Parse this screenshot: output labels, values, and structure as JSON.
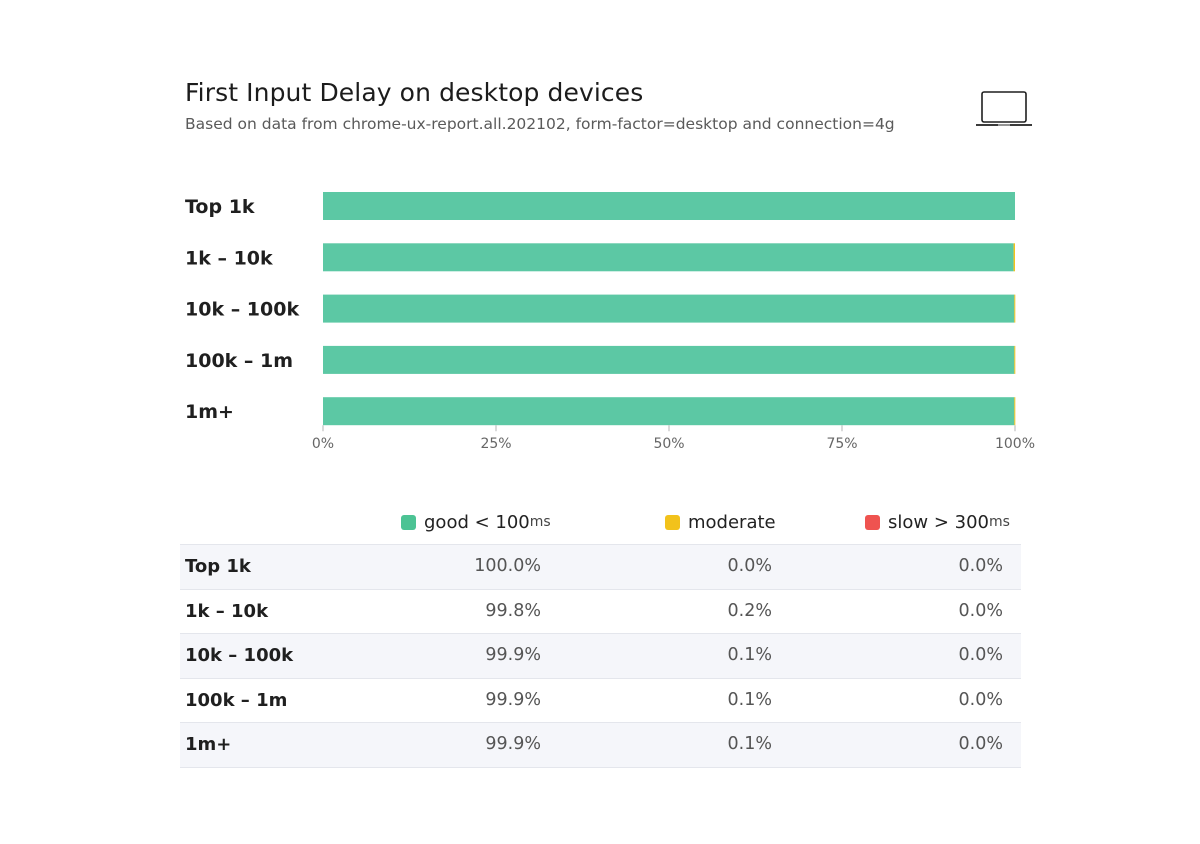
{
  "header": {
    "title": "First Input Delay on desktop devices",
    "subtitle": "Based on data from chrome-ux-report.all.202102, form-factor=desktop and connection=4g",
    "device_icon": "laptop-icon"
  },
  "legend": [
    {
      "label": "good < 100",
      "unit": "ms",
      "color": "#4cc394"
    },
    {
      "label": "moderate",
      "unit": "",
      "color": "#f2c21b"
    },
    {
      "label": "slow > 300",
      "unit": "ms",
      "color": "#ef5350"
    }
  ],
  "table": {
    "rows": [
      {
        "label": "Top 1k",
        "good": "100.0%",
        "moderate": "0.0%",
        "slow": "0.0%"
      },
      {
        "label": "1k – 10k",
        "good": "99.8%",
        "moderate": "0.2%",
        "slow": "0.0%"
      },
      {
        "label": "10k – 100k",
        "good": "99.9%",
        "moderate": "0.1%",
        "slow": "0.0%"
      },
      {
        "label": "100k – 1m",
        "good": "99.9%",
        "moderate": "0.1%",
        "slow": "0.0%"
      },
      {
        "label": "1m+",
        "good": "99.9%",
        "moderate": "0.1%",
        "slow": "0.0%"
      }
    ]
  },
  "chart_data": {
    "type": "bar",
    "orientation": "horizontal",
    "stacked": true,
    "categories": [
      "Top 1k",
      "1k – 10k",
      "10k – 100k",
      "100k – 1m",
      "1m+"
    ],
    "series": [
      {
        "name": "good < 100ms",
        "color": "#5cc8a4",
        "values": [
          100.0,
          99.8,
          99.9,
          99.9,
          99.9
        ]
      },
      {
        "name": "moderate",
        "color": "#f2c21b",
        "values": [
          0.0,
          0.2,
          0.1,
          0.1,
          0.1
        ]
      },
      {
        "name": "slow > 300ms",
        "color": "#ef5350",
        "values": [
          0.0,
          0.0,
          0.0,
          0.0,
          0.0
        ]
      }
    ],
    "xlim": [
      0,
      100
    ],
    "xticks": [
      0,
      25,
      50,
      75,
      100
    ],
    "xtick_labels": [
      "0%",
      "25%",
      "50%",
      "75%",
      "100%"
    ],
    "grid": false
  }
}
